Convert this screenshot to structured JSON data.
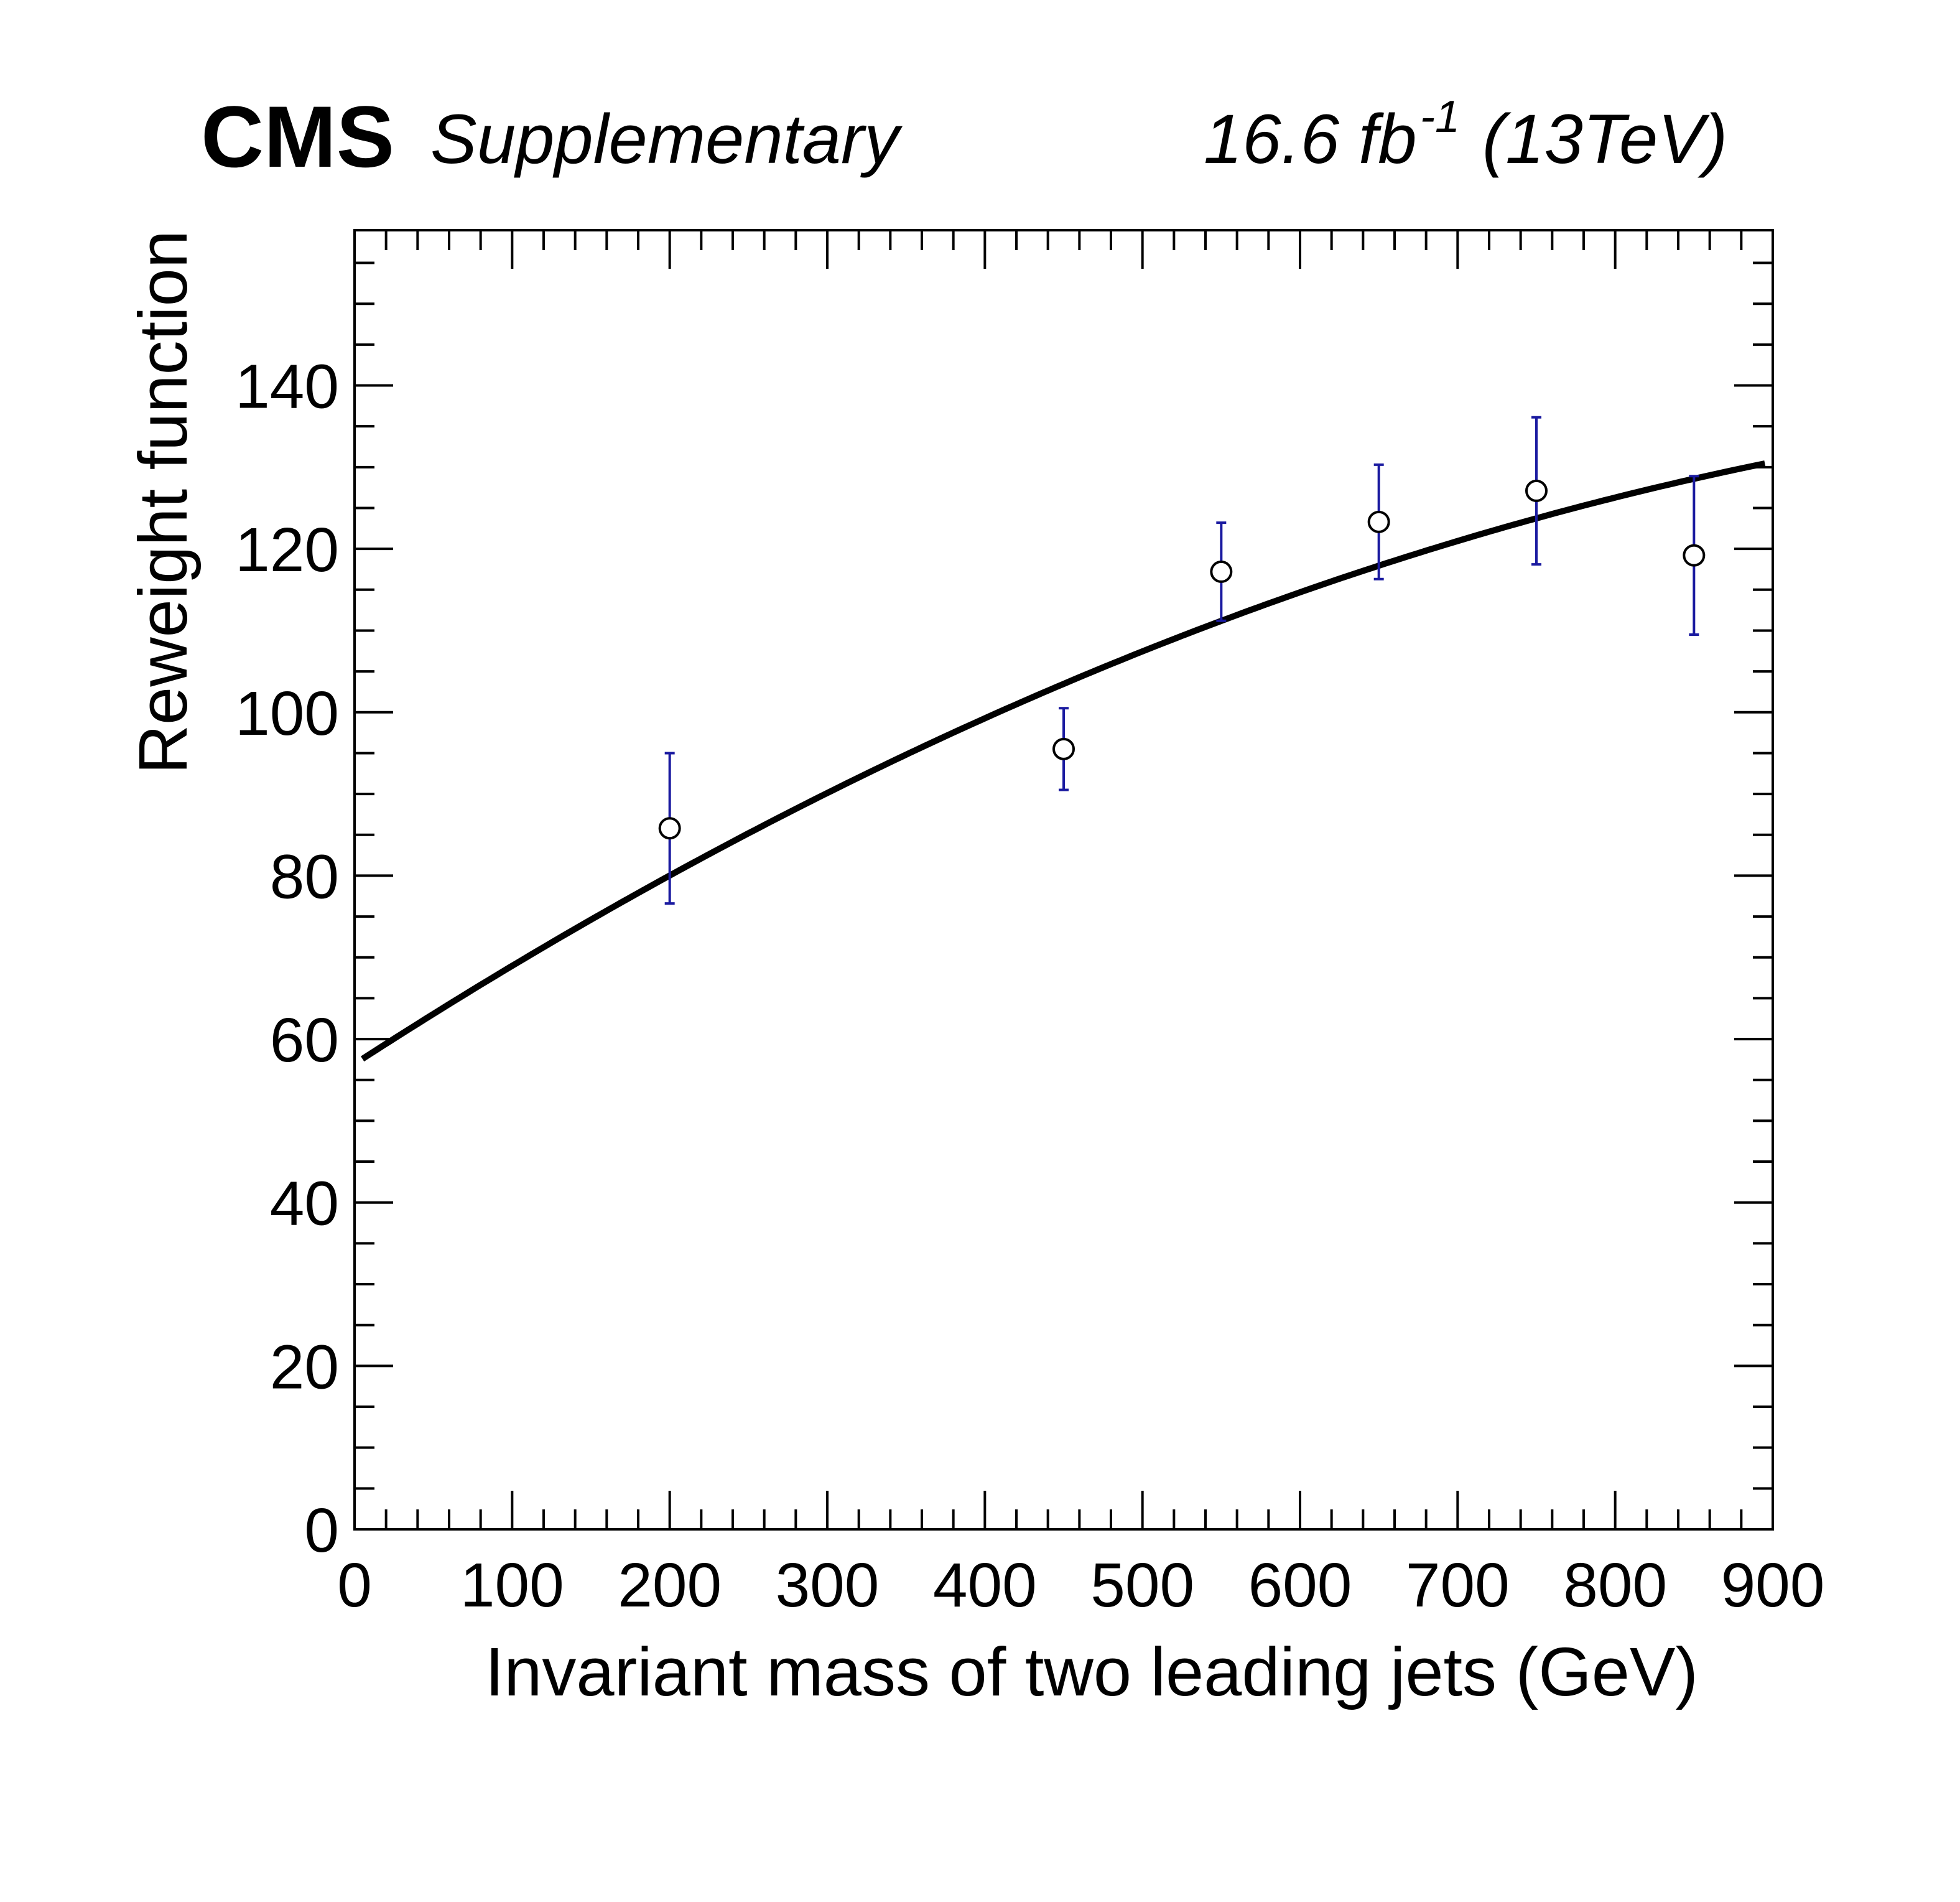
{
  "header": {
    "experiment": "CMS",
    "label": "Supplementary",
    "lumi_value": "16.6 fb",
    "lumi_exponent": "-1",
    "energy": "(13TeV)"
  },
  "chart_data": {
    "type": "scatter",
    "xlabel": "Invariant mass of two leading jets (GeV)",
    "ylabel": "Reweight function",
    "xlim": [
      0,
      900
    ],
    "ylim": [
      0,
      159
    ],
    "x_ticks": [
      0,
      100,
      200,
      300,
      400,
      500,
      600,
      700,
      800,
      900
    ],
    "y_ticks": [
      0,
      20,
      40,
      60,
      80,
      100,
      120,
      140
    ],
    "x_tick_labels": [
      "0",
      "100",
      "200",
      "300",
      "400",
      "500",
      "600",
      "700",
      "800",
      "900"
    ],
    "y_tick_labels": [
      "0",
      "20",
      "40",
      "60",
      "80",
      "100",
      "120",
      "140"
    ],
    "grid": false,
    "legend": "none",
    "points": {
      "marker": "open-circle",
      "error_bar_color": "#1a1aa0",
      "x": [
        200,
        450,
        550,
        650,
        750,
        850
      ],
      "y": [
        85.8,
        95.5,
        117.2,
        123.3,
        127.1,
        119.2
      ],
      "y_err_low": [
        9.2,
        5.0,
        6.0,
        7.0,
        9.0,
        9.7
      ],
      "y_err_high": [
        9.2,
        5.0,
        6.0,
        7.0,
        9.0,
        9.7
      ]
    },
    "fit_curve": {
      "color": "#000000",
      "x_range": [
        5,
        895
      ],
      "function": "quadratic",
      "coefficients": [
        56.95,
        0.1249,
        -4.78e-05
      ]
    }
  }
}
